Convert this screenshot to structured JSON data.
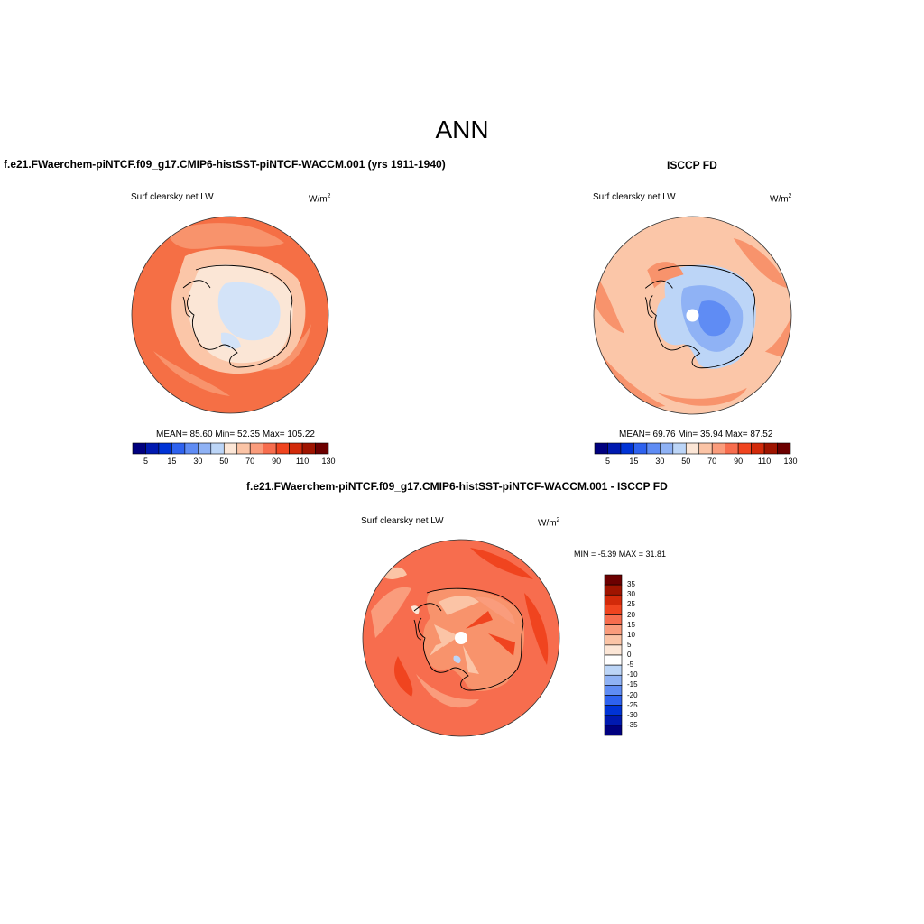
{
  "figure": {
    "title": "ANN"
  },
  "panels": [
    {
      "id": "model",
      "title": "f.e21.FWaerchem-piNTCF.f09_g17.CMIP6-histSST-piNTCF-WACCM.001 (yrs 1911-1940)",
      "variable": "Surf clearsky net LW",
      "units": "W/m",
      "units_sup": "2",
      "stats": {
        "text": "MEAN=  85.60  Min=  52.35  Max= 105.22",
        "mean": 85.6,
        "min": 52.35,
        "max": 105.22
      },
      "colorbar": {
        "colors": [
          "#00007f",
          "#0019b0",
          "#0033d6",
          "#2e62ef",
          "#5f8cf4",
          "#8fb2f5",
          "#bcd5f7",
          "#fce6d6",
          "#fbc4a6",
          "#fa9c7c",
          "#f76d4e",
          "#f0441f",
          "#d22a0a",
          "#9f1400",
          "#6c0000"
        ],
        "tick_labels": [
          "5",
          "15",
          "30",
          "50",
          "70",
          "90",
          "110",
          "130"
        ]
      },
      "map_colors": {
        "ocean": "#f56f45",
        "ocean_light": "#f8936c",
        "coast": "#fbc6a8",
        "interior": "#fbe6d6",
        "plateau": "#d3e3f8"
      }
    },
    {
      "id": "obs",
      "title": "ISCCP FD",
      "variable": "Surf clearsky net LW",
      "units": "W/m",
      "units_sup": "2",
      "stats": {
        "text": "MEAN=  69.76  Min=  35.94  Max=  87.52",
        "mean": 69.76,
        "min": 35.94,
        "max": 87.52
      },
      "colorbar": {
        "colors": [
          "#00007f",
          "#0019b0",
          "#0033d6",
          "#2e62ef",
          "#5f8cf4",
          "#8fb2f5",
          "#bcd5f7",
          "#fce6d6",
          "#fbc4a6",
          "#fa9c7c",
          "#f76d4e",
          "#f0441f",
          "#d22a0a",
          "#9f1400",
          "#6c0000"
        ],
        "tick_labels": [
          "5",
          "15",
          "30",
          "50",
          "70",
          "90",
          "110",
          "130"
        ]
      },
      "map_colors": {
        "ocean": "#fbc6a8",
        "ocean_warm": "#f8936c",
        "land_light": "#bcd5f7",
        "land_mid": "#8fb2f5",
        "land_deep": "#5f8cf4"
      }
    },
    {
      "id": "diff",
      "title": "f.e21.FWaerchem-piNTCF.f09_g17.CMIP6-histSST-piNTCF-WACCM.001 - ISCCP FD",
      "variable": "Surf clearsky net LW",
      "units": "W/m",
      "units_sup": "2",
      "stats": {
        "text": "MIN =  -5.39 MAX =  31.81",
        "min": -5.39,
        "max": 31.81
      },
      "colorbar": {
        "colors": [
          "#00007f",
          "#0019b0",
          "#0033d6",
          "#2e62ef",
          "#5f8cf4",
          "#8fb2f5",
          "#bcd5f7",
          "#ffffff",
          "#fce6d6",
          "#fbc4a6",
          "#fa9c7c",
          "#f76d4e",
          "#f0441f",
          "#d22a0a",
          "#9f1400",
          "#6c0000"
        ],
        "tick_labels": [
          "35",
          "30",
          "25",
          "20",
          "15",
          "10",
          "5",
          "0",
          "-5",
          "-10",
          "-15",
          "-20",
          "-25",
          "-30",
          "-35"
        ]
      },
      "map_colors": {
        "ocean": "#f76d4e",
        "ocean_dark": "#f0441f",
        "ocean_light": "#fa9c7c",
        "land": "#f8936c",
        "land_light": "#fbc4a6",
        "spots": "#fce6d6",
        "neg": "#bcd5f7"
      }
    }
  ]
}
